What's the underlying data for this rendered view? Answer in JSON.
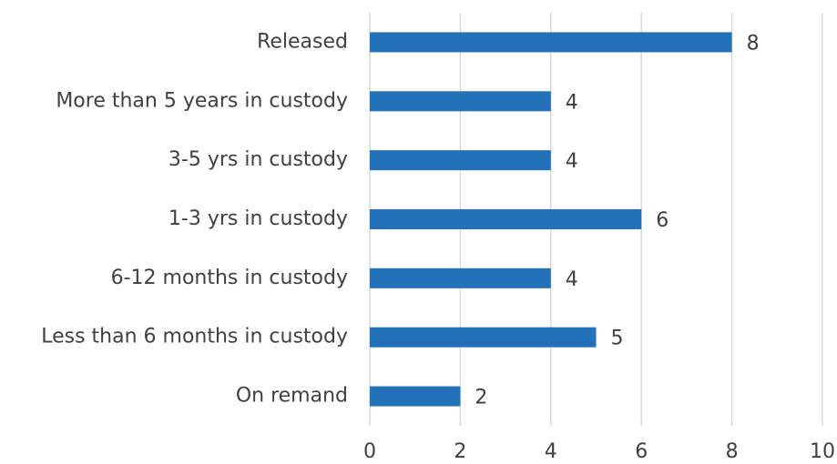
{
  "chart_data": {
    "type": "hbar",
    "categories": [
      "Released",
      "More than 5 years in custody",
      "3-5 yrs in custody",
      "1-3 yrs in custody",
      "6-12 months in custody",
      "Less than 6 months in custody",
      "On remand"
    ],
    "values": [
      8,
      4,
      4,
      6,
      4,
      5,
      2
    ],
    "color": "#2271b9",
    "xlim": [
      0,
      10
    ],
    "xticks": [
      0,
      2,
      4,
      6,
      8,
      10
    ],
    "grid": true
  }
}
